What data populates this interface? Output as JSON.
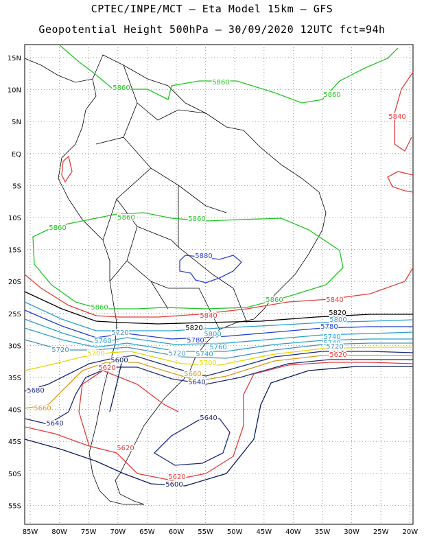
{
  "header": {
    "line1": "CPTEC/INPE/MCT –  Eta Model 15km – GFS",
    "line2": "Geopotential Height 500hPa – 30/09/2020 12UTC fct=94h"
  },
  "axes": {
    "lat_labels": [
      "15N",
      "10N",
      "5N",
      "EQ",
      "5S",
      "10S",
      "15S",
      "20S",
      "25S",
      "30S",
      "35S",
      "40S",
      "45S",
      "50S",
      "55S"
    ],
    "lon_labels": [
      "85W",
      "80W",
      "75W",
      "70W",
      "65W",
      "60W",
      "55W",
      "50W",
      "45W",
      "40W",
      "35W",
      "30W",
      "25W",
      "20W"
    ]
  },
  "contours": [
    {
      "value": "5880",
      "color": "#2e3fd6",
      "labels": [
        "5880"
      ]
    },
    {
      "value": "5860",
      "color": "#22c322",
      "labels": [
        "5860",
        "5860",
        "5860",
        "5860",
        "5860",
        "5860",
        "5860",
        "5860"
      ]
    },
    {
      "value": "5840",
      "color": "#e23b3b",
      "labels": [
        "5840",
        "5840",
        "5840"
      ]
    },
    {
      "value": "5820",
      "color": "#000000",
      "labels": [
        "5820",
        "5820"
      ]
    },
    {
      "value": "5800",
      "color": "#29a0c8",
      "labels": [
        "5800",
        "5800"
      ]
    },
    {
      "value": "5780",
      "color": "#1f3fd0",
      "labels": [
        "5780",
        "5780"
      ]
    },
    {
      "value": "5760",
      "color": "#29a0c8",
      "labels": [
        "5760",
        "5760"
      ]
    },
    {
      "value": "5740",
      "color": "#29a0c8",
      "labels": [
        "5740",
        "5740",
        "5740"
      ]
    },
    {
      "value": "5720",
      "color": "#4a8ec0",
      "labels": [
        "5720",
        "5720",
        "5720",
        "5720"
      ]
    },
    {
      "value": "5700",
      "color": "#e6d600",
      "labels": [
        "5700",
        "5700"
      ]
    },
    {
      "value": "5680",
      "color": "#1e2a7a",
      "labels": [
        "5680"
      ]
    },
    {
      "value": "5660",
      "color": "#d69a20",
      "labels": [
        "5660",
        "5660"
      ]
    },
    {
      "value": "5640",
      "color": "#1e2a7a",
      "labels": [
        "5640",
        "5640",
        "5640"
      ]
    },
    {
      "value": "5620",
      "color": "#e23b3b",
      "labels": [
        "5620",
        "5620",
        "5620",
        "5620"
      ]
    },
    {
      "value": "5600",
      "color": "#0a1a5a",
      "labels": [
        "5600",
        "5600"
      ]
    }
  ]
}
